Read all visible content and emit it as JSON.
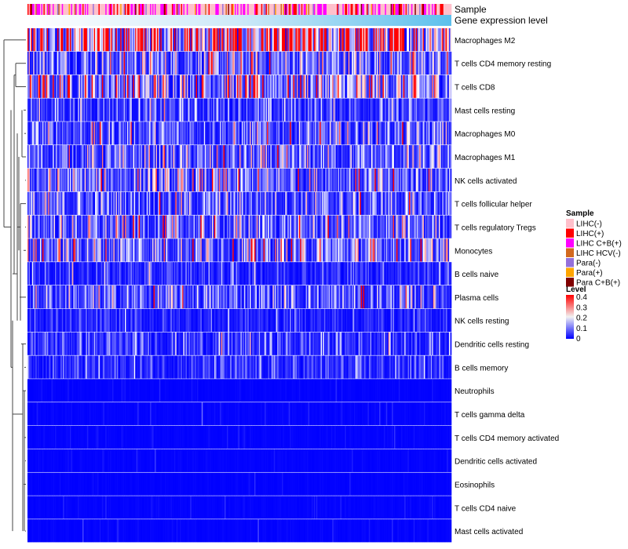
{
  "chart_data": {
    "type": "heatmap",
    "n_samples": 370,
    "annotations": [
      "Sample",
      "Gene expression level"
    ],
    "rows": [
      {
        "label": "Macrophages M2",
        "mean": 0.3
      },
      {
        "label": "T cells CD4 memory resting",
        "mean": 0.11
      },
      {
        "label": "T cells CD8",
        "mean": 0.16
      },
      {
        "label": "Mast cells resting",
        "mean": 0.06
      },
      {
        "label": "Macrophages M0",
        "mean": 0.08
      },
      {
        "label": "Macrophages M1",
        "mean": 0.08
      },
      {
        "label": "NK cells activated",
        "mean": 0.1
      },
      {
        "label": "T cells follicular helper",
        "mean": 0.08
      },
      {
        "label": "T cells regulatory  Tregs",
        "mean": 0.09
      },
      {
        "label": "Monocytes",
        "mean": 0.12
      },
      {
        "label": "B cells naive",
        "mean": 0.04
      },
      {
        "label": "Plasma cells",
        "mean": 0.08
      },
      {
        "label": "NK cells resting",
        "mean": 0.03
      },
      {
        "label": "Dendritic cells resting",
        "mean": 0.05
      },
      {
        "label": "B cells memory",
        "mean": 0.04
      },
      {
        "label": "Neutrophils",
        "mean": 0.01
      },
      {
        "label": "T cells gamma delta",
        "mean": 0.015
      },
      {
        "label": "T cells CD4 memory activated",
        "mean": 0.012
      },
      {
        "label": "Dendritic cells activated",
        "mean": 0.012
      },
      {
        "label": "Eosinophils",
        "mean": 0.006
      },
      {
        "label": "T cells CD4 naive",
        "mean": 0.012
      },
      {
        "label": "Mast cells activated",
        "mean": 0.012
      }
    ],
    "legend_sample": {
      "title": "Sample",
      "items": [
        {
          "label": "LIHC(-)",
          "color": "#FFC0CB",
          "share": 0.55
        },
        {
          "label": "LIHC(+)",
          "color": "#FF0000",
          "share": 0.12
        },
        {
          "label": "LIHC C+B(+)",
          "color": "#FF00FF",
          "share": 0.2
        },
        {
          "label": "LIHC HCV(-)",
          "color": "#D2691E",
          "share": 0.03
        },
        {
          "label": "Para(-)",
          "color": "#9370DB",
          "share": 0.05
        },
        {
          "label": "Para(+)",
          "color": "#FFA500",
          "share": 0.03
        },
        {
          "label": "Para C+B(+)",
          "color": "#800000",
          "share": 0.02
        }
      ]
    },
    "legend_level": {
      "title": "Level",
      "ticks": [
        "0.4",
        "0.3",
        "0.2",
        "0.1",
        "0"
      ],
      "range": [
        0,
        0.4
      ],
      "colors": [
        "#0000FF",
        "#FFFFFF",
        "#FF0000"
      ]
    },
    "gene_expression_colors": [
      "#FFFFFF",
      "#6EC6EE"
    ]
  }
}
